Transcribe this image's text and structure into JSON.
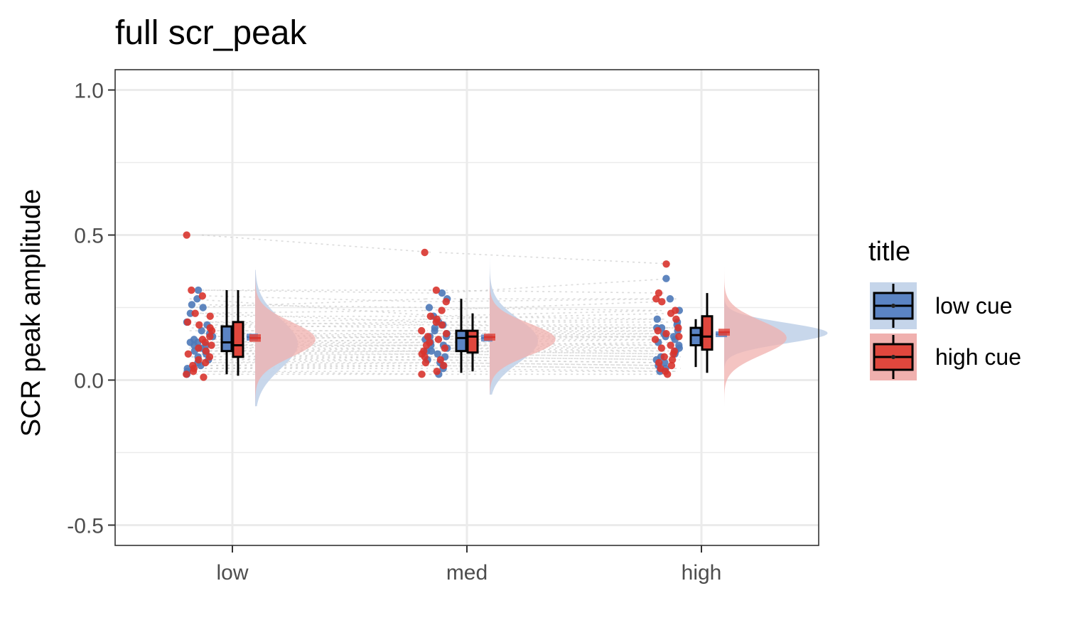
{
  "chart_data": {
    "type": "raincloud",
    "title": "full scr_peak",
    "xlabel": "",
    "ylabel": "SCR peak amplitude",
    "categories": [
      "low",
      "med",
      "high"
    ],
    "ylim": [
      -0.57,
      1.07
    ],
    "yticks": [
      -0.5,
      0.0,
      0.5,
      1.0
    ],
    "ytick_labels": [
      "-0.5",
      "0.0",
      "0.5",
      "1.0"
    ],
    "grid": true,
    "legend": {
      "title": "title",
      "position": "right",
      "entries": [
        "low cue",
        "high cue"
      ]
    },
    "colors": {
      "low cue": "#4e79b8",
      "high cue": "#d8342d",
      "low cue fill": "#5b84c4",
      "high cue fill": "#e0473d",
      "low cue density": "#c5d5ea",
      "high cue density": "#f0b0ae",
      "connector": "#cccccc",
      "grid": "#ebebeb",
      "panel border": "#333333"
    },
    "series": [
      {
        "name": "low cue",
        "boxplots": [
          {
            "category": "low",
            "whisker_low": 0.02,
            "q1": 0.1,
            "median": 0.13,
            "q3": 0.185,
            "whisker_high": 0.31,
            "mean": 0.148,
            "se": 0.012
          },
          {
            "category": "med",
            "whisker_low": 0.025,
            "q1": 0.1,
            "median": 0.145,
            "q3": 0.17,
            "whisker_high": 0.28,
            "mean": 0.145,
            "se": 0.012
          },
          {
            "category": "high",
            "whisker_low": 0.045,
            "q1": 0.12,
            "median": 0.155,
            "q3": 0.18,
            "whisker_high": 0.21,
            "mean": 0.158,
            "se": 0.01
          }
        ],
        "density": [
          {
            "category": "low",
            "mode": 0.125,
            "spread": 0.085,
            "min": -0.09,
            "max": 0.38
          },
          {
            "category": "med",
            "mode": 0.135,
            "spread": 0.075,
            "min": -0.05,
            "max": 0.42
          },
          {
            "category": "high",
            "mode": 0.162,
            "spread": 0.035,
            "min": 0.02,
            "max": 0.4
          }
        ],
        "points": {
          "low": [
            0.31,
            0.25,
            0.26,
            0.28,
            0.23,
            0.2,
            0.19,
            0.17,
            0.16,
            0.15,
            0.14,
            0.13,
            0.13,
            0.12,
            0.12,
            0.11,
            0.1,
            0.1,
            0.09,
            0.08,
            0.07,
            0.06,
            0.05,
            0.04,
            0.03,
            0.02
          ],
          "med": [
            0.3,
            0.28,
            0.25,
            0.22,
            0.2,
            0.19,
            0.18,
            0.17,
            0.16,
            0.15,
            0.15,
            0.14,
            0.13,
            0.12,
            0.12,
            0.11,
            0.1,
            0.1,
            0.09,
            0.08,
            0.07,
            0.06,
            0.05,
            0.04,
            0.02
          ],
          "high": [
            0.35,
            0.28,
            0.24,
            0.21,
            0.2,
            0.19,
            0.18,
            0.18,
            0.17,
            0.16,
            0.15,
            0.15,
            0.14,
            0.13,
            0.12,
            0.11,
            0.1,
            0.09,
            0.08,
            0.07,
            0.06,
            0.05,
            0.04,
            0.03
          ]
        }
      },
      {
        "name": "high cue",
        "boxplots": [
          {
            "category": "low",
            "whisker_low": 0.015,
            "q1": 0.08,
            "median": 0.12,
            "q3": 0.2,
            "whisker_high": 0.31,
            "mean": 0.145,
            "se": 0.013
          },
          {
            "category": "med",
            "whisker_low": 0.03,
            "q1": 0.095,
            "median": 0.15,
            "q3": 0.17,
            "whisker_high": 0.23,
            "mean": 0.148,
            "se": 0.012
          },
          {
            "category": "high",
            "whisker_low": 0.025,
            "q1": 0.105,
            "median": 0.15,
            "q3": 0.22,
            "whisker_high": 0.3,
            "mean": 0.165,
            "se": 0.012
          }
        ],
        "density": [
          {
            "category": "low",
            "mode": 0.14,
            "spread": 0.06,
            "min": -0.11,
            "max": 0.62
          },
          {
            "category": "med",
            "mode": 0.14,
            "spread": 0.055,
            "min": -0.05,
            "max": 0.52
          },
          {
            "category": "high",
            "mode": 0.145,
            "spread": 0.058,
            "min": -0.09,
            "max": 0.52
          }
        ],
        "points": {
          "low": [
            0.5,
            0.31,
            0.29,
            0.23,
            0.22,
            0.2,
            0.19,
            0.18,
            0.17,
            0.15,
            0.14,
            0.13,
            0.12,
            0.11,
            0.1,
            0.09,
            0.08,
            0.07,
            0.06,
            0.05,
            0.04,
            0.03,
            0.02,
            0.01
          ],
          "med": [
            0.44,
            0.31,
            0.27,
            0.24,
            0.22,
            0.21,
            0.2,
            0.19,
            0.17,
            0.16,
            0.15,
            0.14,
            0.13,
            0.12,
            0.11,
            0.1,
            0.09,
            0.08,
            0.07,
            0.06,
            0.05,
            0.03,
            0.02
          ],
          "high": [
            0.4,
            0.3,
            0.28,
            0.27,
            0.24,
            0.23,
            0.21,
            0.18,
            0.17,
            0.16,
            0.15,
            0.14,
            0.12,
            0.11,
            0.1,
            0.09,
            0.08,
            0.07,
            0.06,
            0.05,
            0.04,
            0.03,
            0.02
          ]
        }
      }
    ]
  }
}
